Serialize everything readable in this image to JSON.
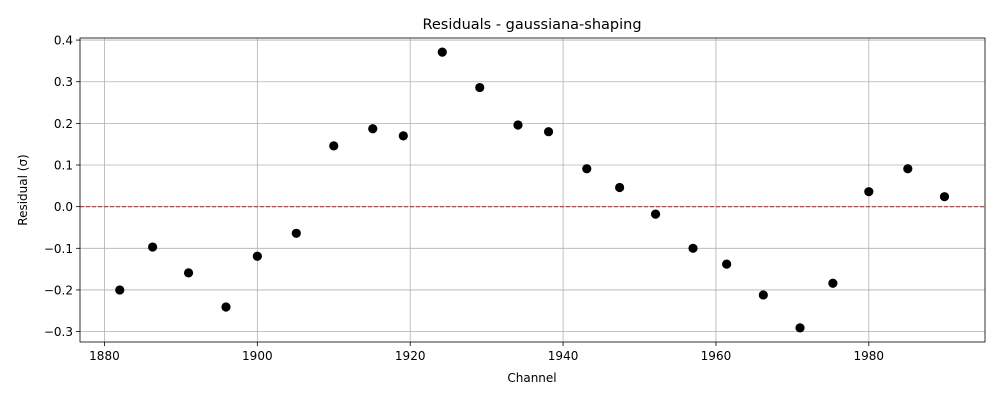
{
  "chart_data": {
    "type": "scatter",
    "title": "Residuals - gaussiana-shaping",
    "xlabel": "Channel",
    "ylabel": "Residual (σ)",
    "xlim": [
      1876.8,
      1995.2
    ],
    "ylim": [
      -0.325,
      0.405
    ],
    "xticks": [
      1880,
      1900,
      1920,
      1940,
      1960,
      1980
    ],
    "yticks": [
      -0.3,
      -0.2,
      -0.1,
      0.0,
      0.1,
      0.2,
      0.3,
      0.4
    ],
    "ytick_labels": [
      "−0.3",
      "−0.2",
      "−0.1",
      "0.0",
      "0.1",
      "0.2",
      "0.3",
      "0.4"
    ],
    "grid": true,
    "point_color": "#000000",
    "reference_line": {
      "y": 0.0,
      "color": "#d62728",
      "style": "dashed"
    },
    "series": [
      {
        "x": [
          1882.0,
          1886.3,
          1891.0,
          1895.9,
          1900.0,
          1905.1,
          1910.0,
          1915.1,
          1919.1,
          1924.2,
          1929.1,
          1934.1,
          1938.1,
          1943.1,
          1947.4,
          1952.1,
          1957.0,
          1961.4,
          1966.2,
          1971.0,
          1975.3,
          1980.0,
          1985.1,
          1989.9
        ],
        "y": [
          -0.2,
          -0.097,
          -0.159,
          -0.241,
          -0.119,
          -0.064,
          0.146,
          0.187,
          0.17,
          0.371,
          0.286,
          0.196,
          0.18,
          0.091,
          0.046,
          -0.018,
          -0.1,
          -0.138,
          -0.212,
          -0.291,
          -0.184,
          0.036,
          0.091,
          0.024
        ]
      }
    ]
  }
}
